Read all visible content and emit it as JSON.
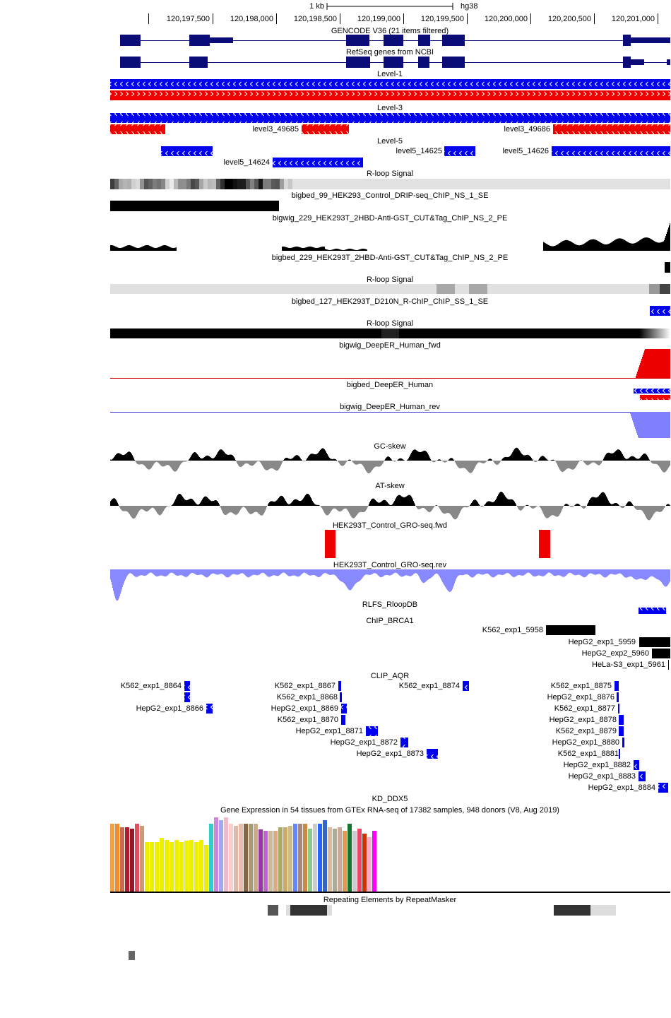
{
  "ruler": {
    "scale_label": "1 kb",
    "assembly": "hg38",
    "positions": [
      "120,197,500",
      "120,198,000",
      "120,198,500",
      "120,199,000",
      "120,199,500",
      "120,200,000",
      "120,200,500",
      "120,201,000"
    ]
  },
  "tracks": [
    {
      "title": "GENCODE V36 (21 items filtered)"
    },
    {
      "title": "RefSeq genes from NCBI"
    },
    {
      "title": "Level-1"
    },
    {
      "title": "Level-3",
      "items": [
        "level3_49685",
        "level3_49686"
      ]
    },
    {
      "title": "Level-5",
      "items": [
        "level5_14625",
        "level5_14626",
        "level5_14624"
      ]
    },
    {
      "title": "R-loop Signal"
    },
    {
      "title": "bigbed_99_HEK293_Control_DRIP-seq_ChIP_NS_1_SE"
    },
    {
      "title": "bigwig_229_HEK293T_2HBD-Anti-GST_CUT&Tag_ChIP_NS_2_PE"
    },
    {
      "title": "bigbed_229_HEK293T_2HBD-Anti-GST_CUT&Tag_ChIP_NS_2_PE"
    },
    {
      "title": "R-loop Signal"
    },
    {
      "title": "bigbed_127_HEK293T_D210N_R-ChIP_ChIP_SS_1_SE"
    },
    {
      "title": "R-loop Signal"
    },
    {
      "title": "bigwig_DeepER_Human_fwd"
    },
    {
      "title": "bigbed_DeepER_Human"
    },
    {
      "title": "bigwig_DeepER_Human_rev"
    },
    {
      "title": "GC-skew"
    },
    {
      "title": "AT-skew"
    },
    {
      "title": "HEK293T_Control_GRO-seq.fwd"
    },
    {
      "title": "HEK293T_Control_GRO-seq.rev"
    },
    {
      "title": "RLFS_RloopDB"
    },
    {
      "title": "ChIP_BRCA1",
      "items": [
        "K562_exp1_5958",
        "HepG2_exp1_5959",
        "HepG2_exp2_5960",
        "HeLa-S3_exp1_5961"
      ]
    },
    {
      "title": "CLIP_AQR",
      "items": [
        "K562_exp1_8864",
        "K562_exp1_8867",
        "K562_exp1_8874",
        "K562_exp1_8875",
        "K562_exp1_8868",
        "HepG2_exp1_8876",
        "HepG2_exp1_8866",
        "HepG2_exp1_8869",
        "K562_exp1_8877",
        "K562_exp1_8870",
        "HepG2_exp1_8878",
        "HepG2_exp1_8871",
        "K562_exp1_8879",
        "HepG2_exp1_8872",
        "HepG2_exp1_8880",
        "HepG2_exp1_8873",
        "K562_exp1_8881",
        "HepG2_exp1_8882",
        "HepG2_exp1_8883",
        "HepG2_exp1_8884"
      ]
    },
    {
      "title": "KD_DDX5"
    },
    {
      "title": "Gene Expression in 54 tissues from GTEx RNA-seq of 17382 samples, 948 donors (V8, Aug 2019)"
    },
    {
      "title": "Repeating Elements by RepeatMasker"
    }
  ]
}
